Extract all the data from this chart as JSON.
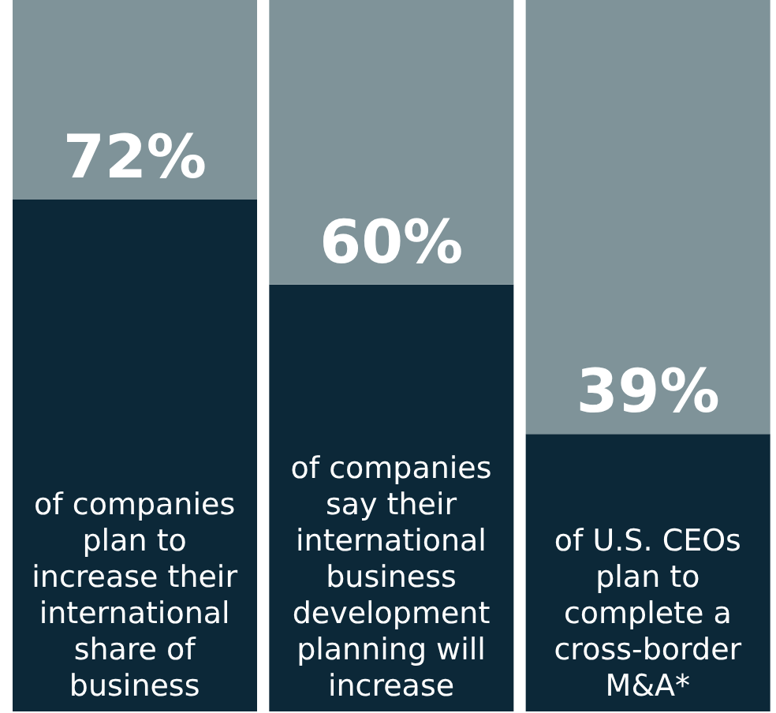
{
  "chart_data": {
    "type": "bar",
    "stacked": true,
    "categories": [
      "of companies plan to increase their international share of business",
      "of companies say their international business development planning will increase",
      "of U.S. CEOs plan to complete a cross-border M&A*"
    ],
    "series": [
      {
        "color": "#0c2838",
        "values": [
          72,
          60,
          39
        ],
        "value_labels": [
          "72%",
          "60%",
          "39%"
        ]
      },
      {
        "color": "#7f9399",
        "values": [
          28,
          40,
          61
        ]
      }
    ],
    "ylim": [
      0,
      100
    ],
    "grid": false,
    "legend": false
  }
}
